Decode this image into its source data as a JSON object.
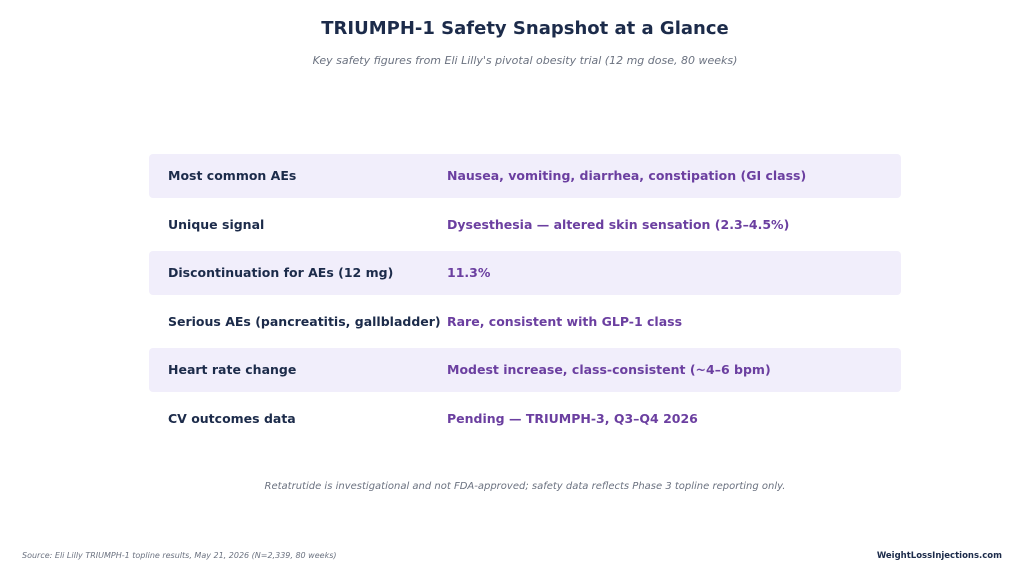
{
  "header": {
    "title": "TRIUMPH-1 Safety Snapshot at a Glance",
    "subtitle": "Key safety figures from Eli Lilly's pivotal obesity trial (12 mg dose, 80 weeks)"
  },
  "rows": [
    {
      "label": "Most common AEs",
      "value": "Nausea, vomiting, diarrhea, constipation (GI class)",
      "shaded": true
    },
    {
      "label": "Unique signal",
      "value": "Dysesthesia — altered skin sensation (2.3–4.5%)",
      "shaded": false
    },
    {
      "label": "Discontinuation for AEs (12 mg)",
      "value": "11.3%",
      "shaded": true
    },
    {
      "label": "Serious AEs (pancreatitis, gallbladder)",
      "value": "Rare, consistent with GLP-1 class",
      "shaded": false
    },
    {
      "label": "Heart rate change",
      "value": "Modest increase, class-consistent (~4–6 bpm)",
      "shaded": true
    },
    {
      "label": "CV outcomes data",
      "value": "Pending — TRIUMPH-3, Q3–Q4 2026",
      "shaded": false
    }
  ],
  "footer": {
    "disclaimer": "Retatrutide is investigational and not FDA-approved; safety data reflects Phase 3 topline reporting only.",
    "source": "Source: Eli Lilly TRIUMPH-1 topline results, May 21, 2026 (N=2,339, 80 weeks)",
    "brand": "WeightLossInjections.com"
  },
  "colors": {
    "title": "#1c2b4a",
    "value_accent": "#6b3fa0",
    "row_shade": "#f1eefb",
    "muted_text": "#6b7280"
  }
}
